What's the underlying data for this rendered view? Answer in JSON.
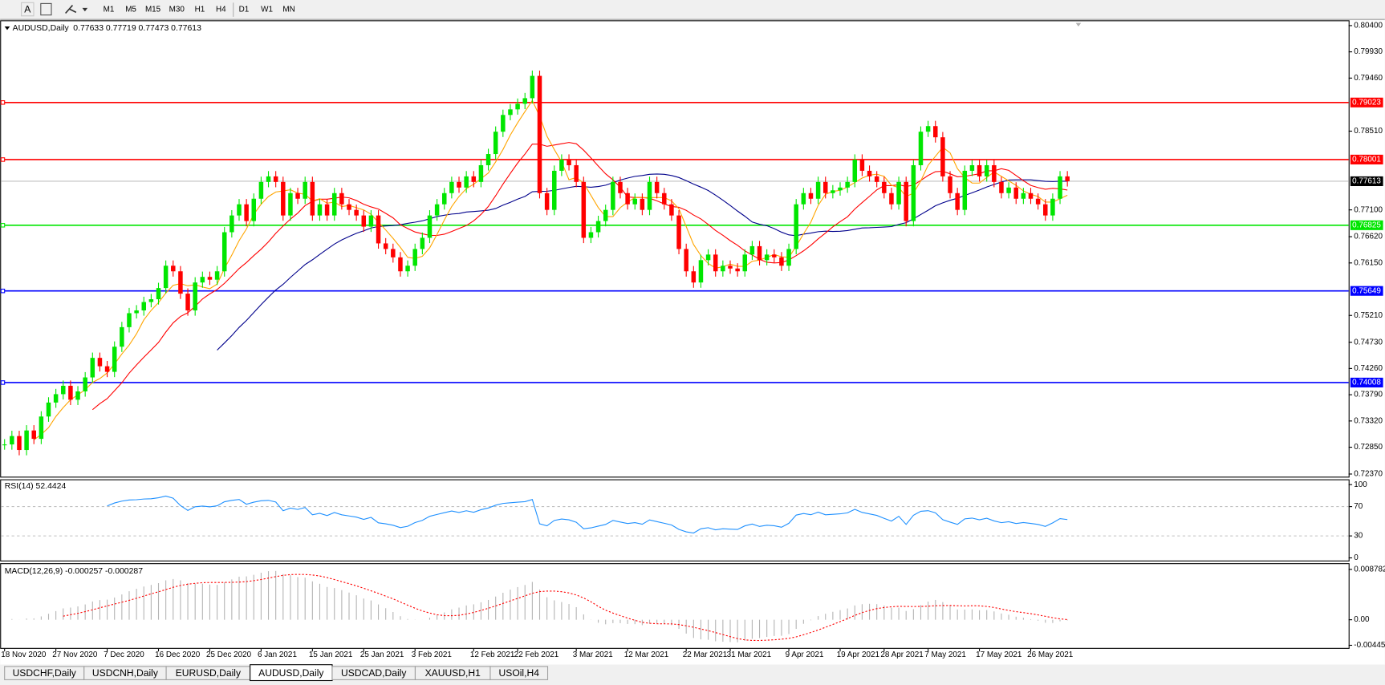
{
  "toolbar": {
    "tools": [
      "A"
    ],
    "timeframes": [
      "M1",
      "M5",
      "M15",
      "M30",
      "H1",
      "H4",
      "D1",
      "W1",
      "MN"
    ]
  },
  "chart_data": [
    {
      "type": "candlestick",
      "title": "AUDUSD,Daily",
      "quote": "0.77633 0.77719 0.77473 0.77613",
      "categories": [
        "18 Nov 2020",
        null,
        null,
        null,
        null,
        null,
        null,
        "27 Nov 2020",
        null,
        null,
        null,
        null,
        null,
        null,
        "7 Dec 2020",
        null,
        null,
        null,
        null,
        null,
        null,
        "16 Dec 2020",
        null,
        null,
        null,
        null,
        null,
        null,
        "25 Dec 2020",
        null,
        null,
        null,
        null,
        null,
        null,
        "6 Jan 2021",
        null,
        null,
        null,
        null,
        null,
        null,
        "15 Jan 2021",
        null,
        null,
        null,
        null,
        null,
        null,
        "25 Jan 2021",
        null,
        null,
        null,
        null,
        null,
        null,
        "3 Feb 2021",
        null,
        null,
        null,
        null,
        null,
        null,
        null,
        "12 Feb 2021",
        null,
        null,
        null,
        null,
        null,
        "22 Feb 2021",
        null,
        null,
        null,
        null,
        null,
        null,
        null,
        "3 Mar 2021",
        null,
        null,
        null,
        null,
        null,
        null,
        "12 Mar 2021",
        null,
        null,
        null,
        null,
        null,
        null,
        null,
        "22 Mar 2021",
        null,
        null,
        null,
        null,
        null,
        "31 Mar 2021",
        null,
        null,
        null,
        null,
        null,
        null,
        null,
        "9 Apr 2021",
        null,
        null,
        null,
        null,
        null,
        null,
        "19 Apr 2021",
        null,
        null,
        null,
        null,
        null,
        "28 Apr 2021",
        null,
        null,
        null,
        null,
        null,
        "7 May 2021",
        null,
        null,
        null,
        null,
        null,
        null,
        "17 May 2021",
        null,
        null,
        null,
        null,
        null,
        null,
        "26 May 2021",
        null,
        null,
        null,
        null,
        null
      ],
      "values": [
        0.729,
        0.7305,
        0.728,
        0.7315,
        0.73,
        0.734,
        0.7365,
        0.738,
        0.7395,
        0.737,
        0.7385,
        0.741,
        0.7445,
        0.743,
        0.742,
        0.7465,
        0.75,
        0.7525,
        0.753,
        0.7545,
        0.755,
        0.757,
        0.761,
        0.76,
        0.756,
        0.753,
        0.758,
        0.759,
        0.7585,
        0.76,
        0.767,
        0.77,
        0.772,
        0.769,
        0.773,
        0.776,
        0.777,
        0.776,
        0.77,
        0.774,
        0.773,
        0.776,
        0.77,
        0.772,
        0.77,
        0.774,
        0.772,
        0.771,
        0.77,
        0.768,
        0.77,
        0.765,
        0.764,
        0.7625,
        0.76,
        0.761,
        0.764,
        0.766,
        0.77,
        0.772,
        0.774,
        0.776,
        0.775,
        0.777,
        0.776,
        0.779,
        0.781,
        0.785,
        0.788,
        0.789,
        0.79,
        0.791,
        0.795,
        0.774,
        0.771,
        0.778,
        0.78,
        0.779,
        0.776,
        0.766,
        0.767,
        0.769,
        0.771,
        0.776,
        0.774,
        0.772,
        0.773,
        0.771,
        0.776,
        0.774,
        0.772,
        0.77,
        0.764,
        0.76,
        0.758,
        0.762,
        0.763,
        0.76,
        0.761,
        0.7605,
        0.76,
        0.763,
        0.7645,
        0.762,
        0.763,
        0.7625,
        0.761,
        0.764,
        0.772,
        0.774,
        0.773,
        0.776,
        0.774,
        0.7745,
        0.775,
        0.776,
        0.78,
        0.778,
        0.777,
        0.776,
        0.774,
        0.772,
        0.776,
        0.769,
        0.779,
        0.785,
        0.786,
        0.784,
        0.777,
        0.774,
        0.771,
        0.778,
        0.779,
        0.777,
        0.779,
        0.776,
        0.774,
        0.775,
        0.773,
        0.774,
        0.773,
        0.772,
        0.77,
        0.773,
        0.777,
        0.77613
      ],
      "up_color": "#00e600",
      "down_color": "#ff0000",
      "ylim": [
        0.7237,
        0.804
      ],
      "yticks": [
        {
          "value": 0.804,
          "label": "0.80400"
        },
        {
          "value": 0.7993,
          "label": "0.79930"
        },
        {
          "value": 0.7946,
          "label": "0.79460"
        },
        {
          "value": 0.7851,
          "label": "0.78510"
        },
        {
          "value": 0.771,
          "label": "0.77100"
        },
        {
          "value": 0.7662,
          "label": "0.76620"
        },
        {
          "value": 0.7615,
          "label": "0.76150"
        },
        {
          "value": 0.7521,
          "label": "0.75210"
        },
        {
          "value": 0.7473,
          "label": "0.74730"
        },
        {
          "value": 0.7426,
          "label": "0.74260"
        },
        {
          "value": 0.7379,
          "label": "0.73790"
        },
        {
          "value": 0.7332,
          "label": "0.73320"
        },
        {
          "value": 0.7285,
          "label": "0.72850"
        },
        {
          "value": 0.7237,
          "label": "0.72370"
        }
      ],
      "levels": [
        {
          "value": 0.79023,
          "label": "0.79023",
          "color": "#ff0000"
        },
        {
          "value": 0.78001,
          "label": "0.78001",
          "color": "#ff0000"
        },
        {
          "value": 0.76825,
          "label": "0.76825",
          "color": "#00e600"
        },
        {
          "value": 0.75649,
          "label": "0.75649",
          "color": "#0000ff"
        },
        {
          "value": 0.74008,
          "label": "0.74008",
          "color": "#0000ff"
        }
      ],
      "last_price": {
        "value": 0.77613,
        "label": "0.77613"
      }
    },
    {
      "type": "rsi",
      "title": "RSI(14) 52.4424",
      "color": "#1e90ff",
      "ylim": [
        0,
        100
      ],
      "yticks": [
        100,
        70,
        30,
        0
      ],
      "levels": [
        70,
        30
      ]
    },
    {
      "type": "macd",
      "title": "MACD(12,26,9) -0.000257 -0.000287",
      "color": "#ff0000",
      "ylim": [
        -0.004451,
        0.008782
      ],
      "yticks": [
        0.008782,
        {
          "value": 0,
          "label": "0.00"
        },
        -0.004451
      ]
    }
  ],
  "tabs": [
    "USDCHF,Daily",
    "USDCNH,Daily",
    "EURUSD,Daily",
    "AUDUSD,Daily",
    "USDCAD,Daily",
    "XAUUSD,H1",
    "USOil,H4"
  ],
  "active_tab": 3
}
